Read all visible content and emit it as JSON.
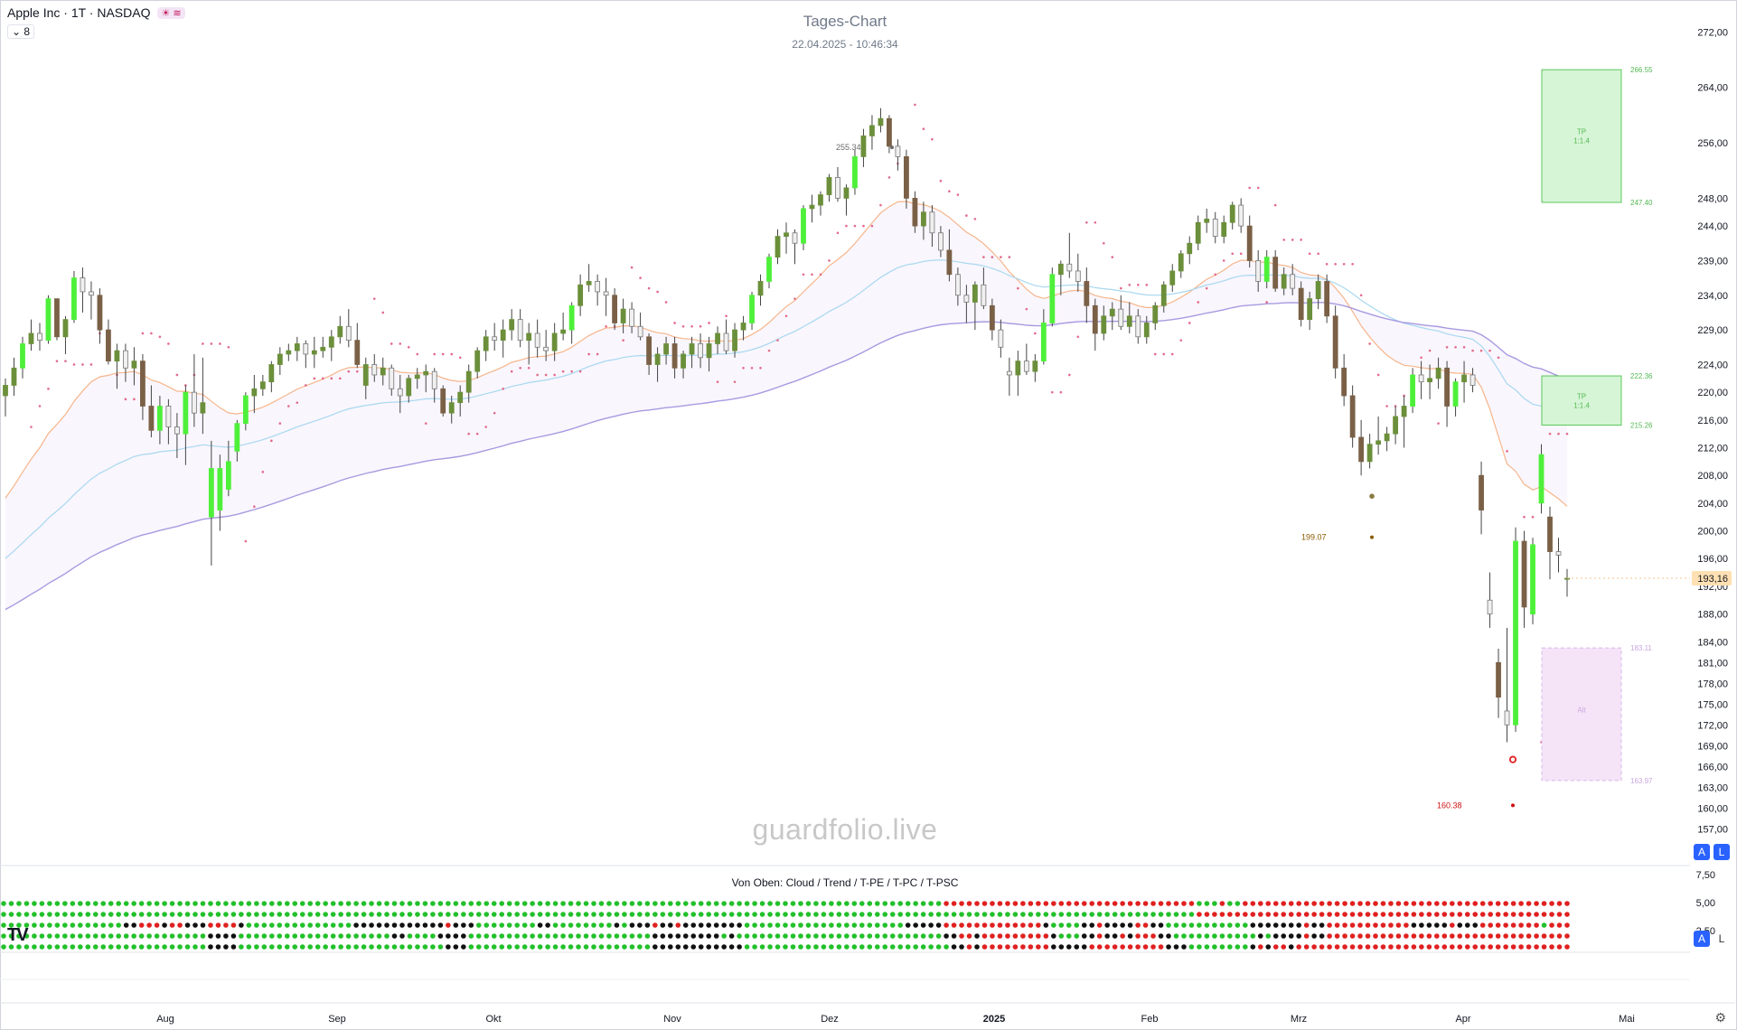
{
  "header": {
    "symbol": "Apple Inc · 1T · NASDAQ",
    "indicator_count": "8",
    "badge": "☀ ≋"
  },
  "chart_title": "Tages-Chart",
  "chart_subtitle": "22.04.2025 - 10:46:34",
  "watermark": "guardfolio.live",
  "indicator_title": "Von Oben: Cloud / Trend / T-PE / T-PC / T-PSC",
  "axis_buttons": {
    "auto": "A",
    "log": "L"
  },
  "colors": {
    "bull_strong": "#4ef03a",
    "bull_weak": "#6b8f3a",
    "bear_weak": "#f0f0f0",
    "bear_strong": "#7a6046",
    "dot_green": "#22c02a",
    "dot_black": "#111111",
    "dot_red": "#e02020",
    "ma_fast": "#f6b58a",
    "ma_mid": "#a8d8f0",
    "ma_slow": "#a89ae0",
    "psar": "#e26b8a",
    "tp_box": "#d6f5d6",
    "sl_box": "#f5e3f8"
  },
  "chart_data": {
    "type": "candlestick",
    "title": "Tages-Chart",
    "price_axis_labels": [
      "272,00",
      "264,00",
      "256,00",
      "248,00",
      "244,00",
      "239,00",
      "234,00",
      "229,00",
      "224,00",
      "220,00",
      "216,00",
      "212,00",
      "208,00",
      "204,00",
      "200,00",
      "196,00",
      "192,00",
      "188,00",
      "184,00",
      "181,00",
      "178,00",
      "175,00",
      "172,00",
      "169,00",
      "166,00",
      "163,00",
      "160,00",
      "157,00"
    ],
    "last_price": "193,16",
    "time_axis_labels": [
      "Aug",
      "Sep",
      "Okt",
      "Nov",
      "Dez",
      "2025",
      "Feb",
      "Mrz",
      "Apr",
      "Mai"
    ],
    "price_range": [
      156,
      274
    ],
    "annotations": [
      {
        "text": "255.34",
        "at_price": 255.34
      },
      {
        "text": "199.07",
        "at_price": 199.07
      },
      {
        "text": "160.38",
        "at_price": 160.38
      }
    ],
    "targets": [
      {
        "label": "TP",
        "ratio": "1:1.4",
        "high": "266.55",
        "low": "247.40"
      },
      {
        "label": "TP",
        "ratio": "1:1.4",
        "high": "222.36",
        "low": "215.26"
      },
      {
        "label": "Alt",
        "high": "183.11",
        "low": "163.97"
      }
    ],
    "indicator_axis_labels": [
      "7,50",
      "5,00",
      "2,50"
    ],
    "indicator_rows": [
      "Cloud",
      "Trend",
      "T-PE",
      "T-PC",
      "T-PSC"
    ],
    "ohlc": [
      [
        219.5,
        222.0,
        216.5,
        221.0
      ],
      [
        221.0,
        225.0,
        219.5,
        223.5
      ],
      [
        223.5,
        228.0,
        222.0,
        227.0
      ],
      [
        227.0,
        230.5,
        226.0,
        228.5
      ],
      [
        228.5,
        230.0,
        226.0,
        227.5
      ],
      [
        227.5,
        234.0,
        227.0,
        233.5
      ],
      [
        233.5,
        233.5,
        227.5,
        228.0
      ],
      [
        228.0,
        231.0,
        225.5,
        230.5
      ],
      [
        230.5,
        237.5,
        230.0,
        236.5
      ],
      [
        236.5,
        238.0,
        231.5,
        234.5
      ],
      [
        234.5,
        236.0,
        230.5,
        234.0
      ],
      [
        234.0,
        235.0,
        227.0,
        229.0
      ],
      [
        229.0,
        230.5,
        224.0,
        224.5
      ],
      [
        224.5,
        227.0,
        220.5,
        226.0
      ],
      [
        226.0,
        227.0,
        221.5,
        223.5
      ],
      [
        223.5,
        226.5,
        221.0,
        224.5
      ],
      [
        224.5,
        225.5,
        216.0,
        218.0
      ],
      [
        218.0,
        221.0,
        213.5,
        214.5
      ],
      [
        214.5,
        219.5,
        212.5,
        218.0
      ],
      [
        218.0,
        219.0,
        212.5,
        215.0
      ],
      [
        215.0,
        217.0,
        210.5,
        214.0
      ],
      [
        214.0,
        221.0,
        209.5,
        220.0
      ],
      [
        220.0,
        225.5,
        215.0,
        217.0
      ],
      [
        217.0,
        225.0,
        214.0,
        218.5
      ],
      [
        202.0,
        213.0,
        195.0,
        209.0
      ],
      [
        203.0,
        211.0,
        200.0,
        209.0
      ],
      [
        206.0,
        213.0,
        205.0,
        210.0
      ],
      [
        211.5,
        216.0,
        210.0,
        215.5
      ],
      [
        215.5,
        220.0,
        214.5,
        219.5
      ],
      [
        219.5,
        222.5,
        217.0,
        220.5
      ],
      [
        220.5,
        222.5,
        219.5,
        221.5
      ],
      [
        221.5,
        224.5,
        220.0,
        224.0
      ],
      [
        224.0,
        226.5,
        222.5,
        225.5
      ],
      [
        225.5,
        227.0,
        224.5,
        226.0
      ],
      [
        226.0,
        228.0,
        224.5,
        227.0
      ],
      [
        227.0,
        227.5,
        223.5,
        225.5
      ],
      [
        225.5,
        228.0,
        223.5,
        226.0
      ],
      [
        226.0,
        228.0,
        225.0,
        226.5
      ],
      [
        226.5,
        229.0,
        224.5,
        228.0
      ],
      [
        228.0,
        231.0,
        227.0,
        229.5
      ],
      [
        229.5,
        232.0,
        226.5,
        227.5
      ],
      [
        227.5,
        230.0,
        223.5,
        224.0
      ],
      [
        221.0,
        225.0,
        219.0,
        224.0
      ],
      [
        224.0,
        225.5,
        221.5,
        222.5
      ],
      [
        222.5,
        225.0,
        221.0,
        223.5
      ],
      [
        223.5,
        224.0,
        219.5,
        220.5
      ],
      [
        220.5,
        222.5,
        217.0,
        219.5
      ],
      [
        219.5,
        222.5,
        218.5,
        222.0
      ],
      [
        222.0,
        223.5,
        220.5,
        222.5
      ],
      [
        222.5,
        224.0,
        220.0,
        223.0
      ],
      [
        223.0,
        223.5,
        218.5,
        220.5
      ],
      [
        220.5,
        221.0,
        216.5,
        217.0
      ],
      [
        217.0,
        219.5,
        215.5,
        218.5
      ],
      [
        218.5,
        221.0,
        216.5,
        220.0
      ],
      [
        220.0,
        224.0,
        218.5,
        223.0
      ],
      [
        223.0,
        226.5,
        222.0,
        226.0
      ],
      [
        226.0,
        229.0,
        224.5,
        228.0
      ],
      [
        228.0,
        230.0,
        226.0,
        227.5
      ],
      [
        227.5,
        230.5,
        225.0,
        229.0
      ],
      [
        229.0,
        232.0,
        227.5,
        230.5
      ],
      [
        230.5,
        232.0,
        226.5,
        227.5
      ],
      [
        227.5,
        230.0,
        224.0,
        228.5
      ],
      [
        228.5,
        230.5,
        225.0,
        226.5
      ],
      [
        226.5,
        229.0,
        224.5,
        226.0
      ],
      [
        226.0,
        230.0,
        224.5,
        228.5
      ],
      [
        228.5,
        231.5,
        227.5,
        229.0
      ],
      [
        229.0,
        233.0,
        227.0,
        232.5
      ],
      [
        232.5,
        237.0,
        231.0,
        235.5
      ],
      [
        235.5,
        238.5,
        234.5,
        236.0
      ],
      [
        236.0,
        237.0,
        232.5,
        234.5
      ],
      [
        234.5,
        236.5,
        231.0,
        234.0
      ],
      [
        234.0,
        235.0,
        229.0,
        230.0
      ],
      [
        230.0,
        233.5,
        228.5,
        232.0
      ],
      [
        232.0,
        233.0,
        228.5,
        229.5
      ],
      [
        229.5,
        231.5,
        227.5,
        228.0
      ],
      [
        228.0,
        228.5,
        222.5,
        224.0
      ],
      [
        224.0,
        226.5,
        221.5,
        225.5
      ],
      [
        225.5,
        228.0,
        224.0,
        227.0
      ],
      [
        227.0,
        228.0,
        222.0,
        223.5
      ],
      [
        223.5,
        226.0,
        222.0,
        225.5
      ],
      [
        225.5,
        228.0,
        223.5,
        227.0
      ],
      [
        227.0,
        228.5,
        223.5,
        225.0
      ],
      [
        225.0,
        228.0,
        223.0,
        227.0
      ],
      [
        227.0,
        229.5,
        225.5,
        228.5
      ],
      [
        228.5,
        230.5,
        225.5,
        226.0
      ],
      [
        226.0,
        230.0,
        225.0,
        229.0
      ],
      [
        229.0,
        231.0,
        227.5,
        230.0
      ],
      [
        230.0,
        234.5,
        229.0,
        234.0
      ],
      [
        234.0,
        237.0,
        232.5,
        236.0
      ],
      [
        236.0,
        240.0,
        235.0,
        239.5
      ],
      [
        239.5,
        243.5,
        238.5,
        242.5
      ],
      [
        242.5,
        244.5,
        240.0,
        243.0
      ],
      [
        243.0,
        243.5,
        238.5,
        241.5
      ],
      [
        241.5,
        247.0,
        240.5,
        246.5
      ],
      [
        246.5,
        248.5,
        244.5,
        247.0
      ],
      [
        247.0,
        249.0,
        245.5,
        248.5
      ],
      [
        248.5,
        251.5,
        247.5,
        251.0
      ],
      [
        251.0,
        252.5,
        247.5,
        248.0
      ],
      [
        248.0,
        250.0,
        245.5,
        249.5
      ],
      [
        249.5,
        255.0,
        248.5,
        254.0
      ],
      [
        254.0,
        258.0,
        252.5,
        257.0
      ],
      [
        257.0,
        260.0,
        255.0,
        258.5
      ],
      [
        258.5,
        261.0,
        257.5,
        259.5
      ],
      [
        259.5,
        260.0,
        254.5,
        255.5
      ],
      [
        255.5,
        256.5,
        252.0,
        254.0
      ],
      [
        254.0,
        255.0,
        246.5,
        248.0
      ],
      [
        248.0,
        249.0,
        243.0,
        244.0
      ],
      [
        244.0,
        247.5,
        242.0,
        246.0
      ],
      [
        246.0,
        247.0,
        241.0,
        243.0
      ],
      [
        243.0,
        244.0,
        239.5,
        240.5
      ],
      [
        240.5,
        243.5,
        236.0,
        237.0
      ],
      [
        237.0,
        238.0,
        232.5,
        234.0
      ],
      [
        234.0,
        235.5,
        230.0,
        233.0
      ],
      [
        233.0,
        236.0,
        229.0,
        235.5
      ],
      [
        235.5,
        238.0,
        232.0,
        232.5
      ],
      [
        232.5,
        233.5,
        227.5,
        229.0
      ],
      [
        229.0,
        230.5,
        225.0,
        226.5
      ],
      [
        223.0,
        225.0,
        219.5,
        222.5
      ],
      [
        222.5,
        226.0,
        219.5,
        224.5
      ],
      [
        224.5,
        227.0,
        222.5,
        223.0
      ],
      [
        223.0,
        225.5,
        221.5,
        224.5
      ],
      [
        224.5,
        232.0,
        224.0,
        230.0
      ],
      [
        230.0,
        238.0,
        229.5,
        237.0
      ],
      [
        237.0,
        239.0,
        234.0,
        238.5
      ],
      [
        238.5,
        243.0,
        236.5,
        237.5
      ],
      [
        237.5,
        240.0,
        234.5,
        236.0
      ],
      [
        236.0,
        238.0,
        230.0,
        232.5
      ],
      [
        232.5,
        233.5,
        226.0,
        228.5
      ],
      [
        228.5,
        232.5,
        227.5,
        231.0
      ],
      [
        231.0,
        233.0,
        229.0,
        232.0
      ],
      [
        232.0,
        234.0,
        229.0,
        229.5
      ],
      [
        229.5,
        233.0,
        228.5,
        231.0
      ],
      [
        231.0,
        232.0,
        227.0,
        228.0
      ],
      [
        228.0,
        231.0,
        227.0,
        230.0
      ],
      [
        230.0,
        233.0,
        229.0,
        232.5
      ],
      [
        232.5,
        236.0,
        231.5,
        235.5
      ],
      [
        235.5,
        238.5,
        234.5,
        237.5
      ],
      [
        237.5,
        240.5,
        236.5,
        240.0
      ],
      [
        240.0,
        242.5,
        238.5,
        241.5
      ],
      [
        241.5,
        245.5,
        240.5,
        244.5
      ],
      [
        244.5,
        246.5,
        243.0,
        245.0
      ],
      [
        245.0,
        246.0,
        241.5,
        242.5
      ],
      [
        242.5,
        245.5,
        241.5,
        244.5
      ],
      [
        244.5,
        247.5,
        243.5,
        247.0
      ],
      [
        247.0,
        248.0,
        243.0,
        244.0
      ],
      [
        244.0,
        245.5,
        238.0,
        239.0
      ],
      [
        239.0,
        240.5,
        234.5,
        236.0
      ],
      [
        236.0,
        240.5,
        235.0,
        239.5
      ],
      [
        239.5,
        240.5,
        234.5,
        235.0
      ],
      [
        235.0,
        238.0,
        234.0,
        237.0
      ],
      [
        237.0,
        238.5,
        234.0,
        235.0
      ],
      [
        235.0,
        236.0,
        229.5,
        230.5
      ],
      [
        230.5,
        234.5,
        229.0,
        233.5
      ],
      [
        233.5,
        237.0,
        232.0,
        236.0
      ],
      [
        236.0,
        237.0,
        230.0,
        231.0
      ],
      [
        231.0,
        232.5,
        222.0,
        223.5
      ],
      [
        223.5,
        225.5,
        218.0,
        219.5
      ],
      [
        219.5,
        221.0,
        212.0,
        213.5
      ],
      [
        213.5,
        216.0,
        208.0,
        210.0
      ],
      [
        210.0,
        214.0,
        209.0,
        212.5
      ],
      [
        212.5,
        216.5,
        211.0,
        213.0
      ],
      [
        213.0,
        215.0,
        211.5,
        214.0
      ],
      [
        214.0,
        218.0,
        212.5,
        216.5
      ],
      [
        216.5,
        219.5,
        212.0,
        218.0
      ],
      [
        218.0,
        223.5,
        217.0,
        222.5
      ],
      [
        222.5,
        224.5,
        219.0,
        221.5
      ],
      [
        221.5,
        224.0,
        219.0,
        222.0
      ],
      [
        222.0,
        225.0,
        220.5,
        223.5
      ],
      [
        223.5,
        224.5,
        215.0,
        218.0
      ],
      [
        218.0,
        222.0,
        216.5,
        221.5
      ],
      [
        221.5,
        224.5,
        218.5,
        222.5
      ],
      [
        222.5,
        223.5,
        220.0,
        221.0
      ],
      [
        208.0,
        210.0,
        199.5,
        203.0
      ],
      [
        190.0,
        194.0,
        186.0,
        188.0
      ],
      [
        181.0,
        183.0,
        173.0,
        176.0
      ],
      [
        174.0,
        186.0,
        169.5,
        172.0
      ],
      [
        172.0,
        200.5,
        171.0,
        198.5
      ],
      [
        198.5,
        200.0,
        186.0,
        189.0
      ],
      [
        188.0,
        199.0,
        186.5,
        198.0
      ],
      [
        204.0,
        212.5,
        202.5,
        211.0
      ],
      [
        202.0,
        203.5,
        193.0,
        197.0
      ],
      [
        197.0,
        199.0,
        194.0,
        196.5
      ],
      [
        193.0,
        194.5,
        190.5,
        193.16
      ]
    ]
  }
}
